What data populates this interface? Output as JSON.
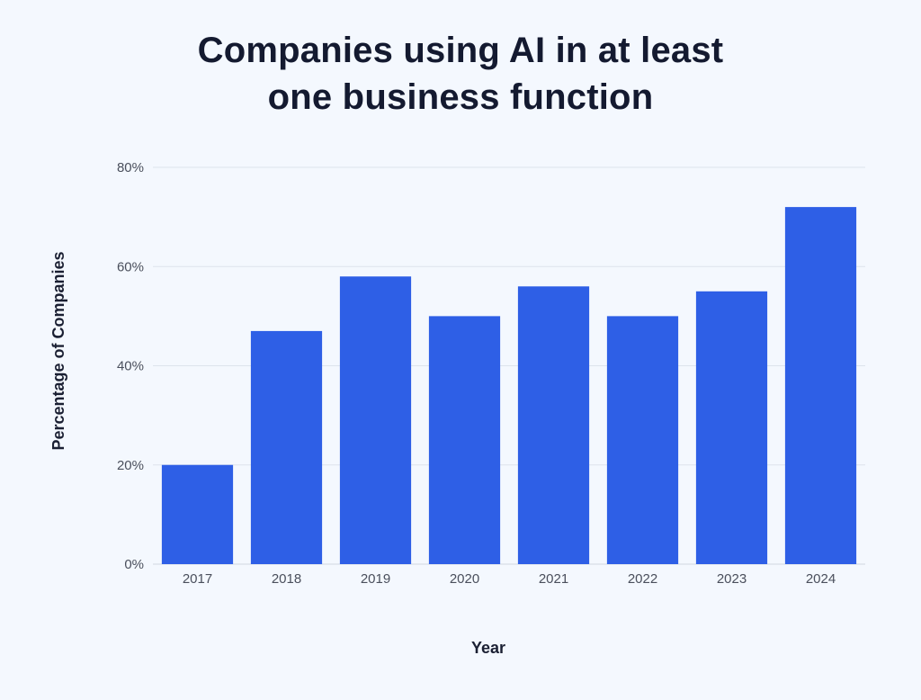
{
  "title_lines": [
    "Companies using AI in at least",
    "one business function"
  ],
  "chart_data": {
    "type": "bar",
    "title": "Companies using AI in at least one business function",
    "xlabel": "Year",
    "ylabel": "Percentage of Companies",
    "categories": [
      "2017",
      "2018",
      "2019",
      "2020",
      "2021",
      "2022",
      "2023",
      "2024"
    ],
    "values": [
      20,
      47,
      58,
      50,
      56,
      50,
      55,
      72
    ],
    "ylim": [
      0,
      80
    ],
    "yticks": [
      0,
      20,
      40,
      60,
      80
    ],
    "ytick_labels": [
      "0%",
      "20%",
      "40%",
      "60%",
      "80%"
    ],
    "grid": true,
    "bar_color": "#2e5fe6",
    "background_color": "#f4f8fe"
  }
}
